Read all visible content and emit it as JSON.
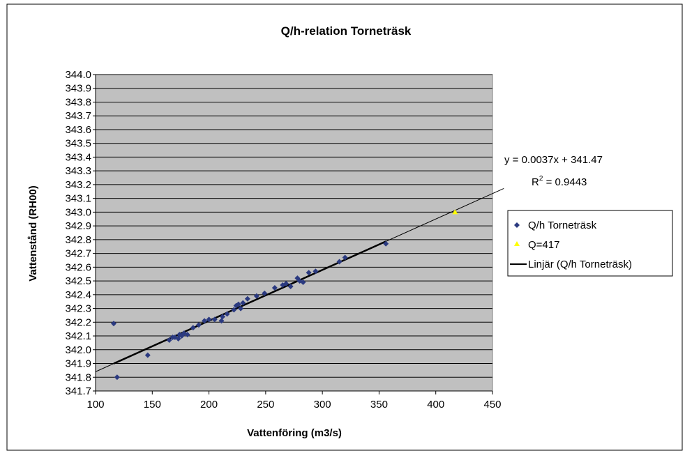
{
  "chart_data": {
    "type": "scatter",
    "title": "Q/h-relation Torneträsk",
    "xlabel": "Vattenföring (m3/s)",
    "ylabel": "Vattenstånd (RH00)",
    "xlim": [
      100,
      450
    ],
    "ylim": [
      341.7,
      344.0
    ],
    "x_ticks": [
      "100",
      "150",
      "200",
      "250",
      "300",
      "350",
      "400",
      "450"
    ],
    "y_ticks": [
      "341.7",
      "341.8",
      "341.9",
      "342.0",
      "342.1",
      "342.2",
      "342.3",
      "342.4",
      "342.5",
      "342.6",
      "342.7",
      "342.8",
      "342.9",
      "343.0",
      "343.1",
      "343.2",
      "343.3",
      "343.4",
      "343.5",
      "343.6",
      "343.7",
      "343.8",
      "343.9",
      "344.0"
    ],
    "grid": "horizontal",
    "legend_position": "right",
    "plot_background": "#c0c0c0",
    "series": [
      {
        "name": "Q/h Torneträsk",
        "marker": "diamond",
        "color": "#2b3a80",
        "x": [
          116,
          119,
          146,
          165,
          168,
          170,
          173,
          174,
          176,
          178,
          181,
          186,
          191,
          196,
          200,
          205,
          211,
          212,
          216,
          222,
          224,
          226,
          228,
          230,
          234,
          242,
          249,
          258,
          265,
          268,
          272,
          278,
          280,
          283,
          288,
          294,
          315,
          320,
          356
        ],
        "y": [
          342.19,
          341.8,
          341.96,
          342.07,
          342.09,
          342.09,
          342.08,
          342.11,
          342.1,
          342.12,
          342.11,
          342.16,
          342.18,
          342.21,
          342.22,
          342.22,
          342.21,
          342.24,
          342.26,
          342.29,
          342.32,
          342.33,
          342.3,
          342.34,
          342.37,
          342.39,
          342.41,
          342.45,
          342.47,
          342.48,
          342.46,
          342.52,
          342.5,
          342.49,
          342.56,
          342.57,
          342.64,
          342.67,
          342.77
        ]
      },
      {
        "name": "Q=417",
        "marker": "triangle",
        "color": "#ffff00",
        "x": [
          417
        ],
        "y": [
          343.0
        ]
      },
      {
        "name": "Linjär (Q/h Torneträsk)",
        "type": "trendline",
        "slope": 0.0037,
        "intercept": 341.47,
        "color": "#000000"
      }
    ],
    "annotations": {
      "equation": "y = 0.0037x + 341.47",
      "r2_label": "R",
      "r2_sup": "2",
      "r2_value": " = 0.9443"
    }
  }
}
